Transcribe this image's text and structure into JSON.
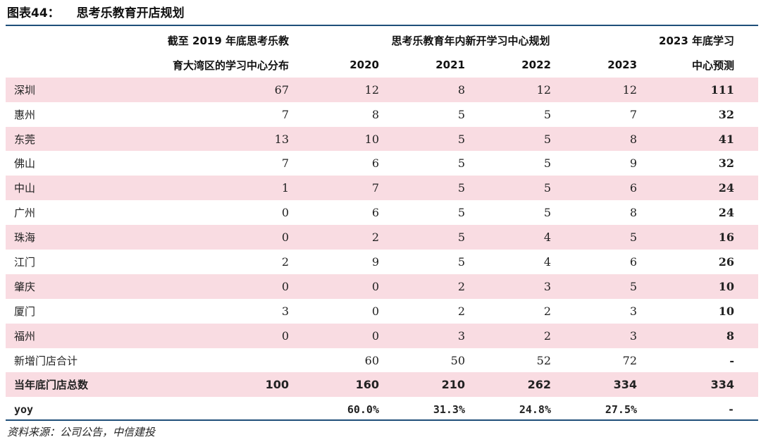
{
  "title": {
    "label": "图表44：",
    "text": "思考乐教育开店规划"
  },
  "header": {
    "col1_line1": "截至 2019 年底思考乐教",
    "col1_line2": "育大湾区的学习中心分布",
    "group_label": "思考乐教育年内新开学习中心规划",
    "last_line1": "2023 年底学习",
    "last_line2": "中心预测",
    "years": [
      "2020",
      "2021",
      "2022",
      "2023"
    ]
  },
  "rows": [
    {
      "city": "深圳",
      "v": [
        "67",
        "12",
        "8",
        "12",
        "12",
        "111"
      ]
    },
    {
      "city": "惠州",
      "v": [
        "7",
        "8",
        "5",
        "5",
        "7",
        "32"
      ]
    },
    {
      "city": "东莞",
      "v": [
        "13",
        "10",
        "5",
        "5",
        "8",
        "41"
      ]
    },
    {
      "city": "佛山",
      "v": [
        "7",
        "6",
        "5",
        "5",
        "9",
        "32"
      ]
    },
    {
      "city": "中山",
      "v": [
        "1",
        "7",
        "5",
        "5",
        "6",
        "24"
      ]
    },
    {
      "city": "广州",
      "v": [
        "0",
        "6",
        "5",
        "5",
        "8",
        "24"
      ]
    },
    {
      "city": "珠海",
      "v": [
        "0",
        "2",
        "5",
        "4",
        "5",
        "16"
      ]
    },
    {
      "city": "江门",
      "v": [
        "2",
        "9",
        "5",
        "4",
        "6",
        "26"
      ]
    },
    {
      "city": "肇庆",
      "v": [
        "0",
        "0",
        "2",
        "3",
        "5",
        "10"
      ]
    },
    {
      "city": "厦门",
      "v": [
        "3",
        "0",
        "2",
        "2",
        "3",
        "10"
      ]
    },
    {
      "city": "福州",
      "v": [
        "0",
        "0",
        "3",
        "2",
        "3",
        "8"
      ]
    },
    {
      "city": "新增门店合计",
      "v": [
        "",
        "60",
        "50",
        "52",
        "72",
        "-"
      ]
    },
    {
      "city": "当年底门店总数",
      "v": [
        "100",
        "160",
        "210",
        "262",
        "334",
        "334"
      ]
    },
    {
      "city": "yoy",
      "v": [
        "",
        "60.0%",
        "31.3%",
        "24.8%",
        "27.5%",
        "-"
      ]
    }
  ],
  "source": "资料来源：公司公告，中信建投"
}
